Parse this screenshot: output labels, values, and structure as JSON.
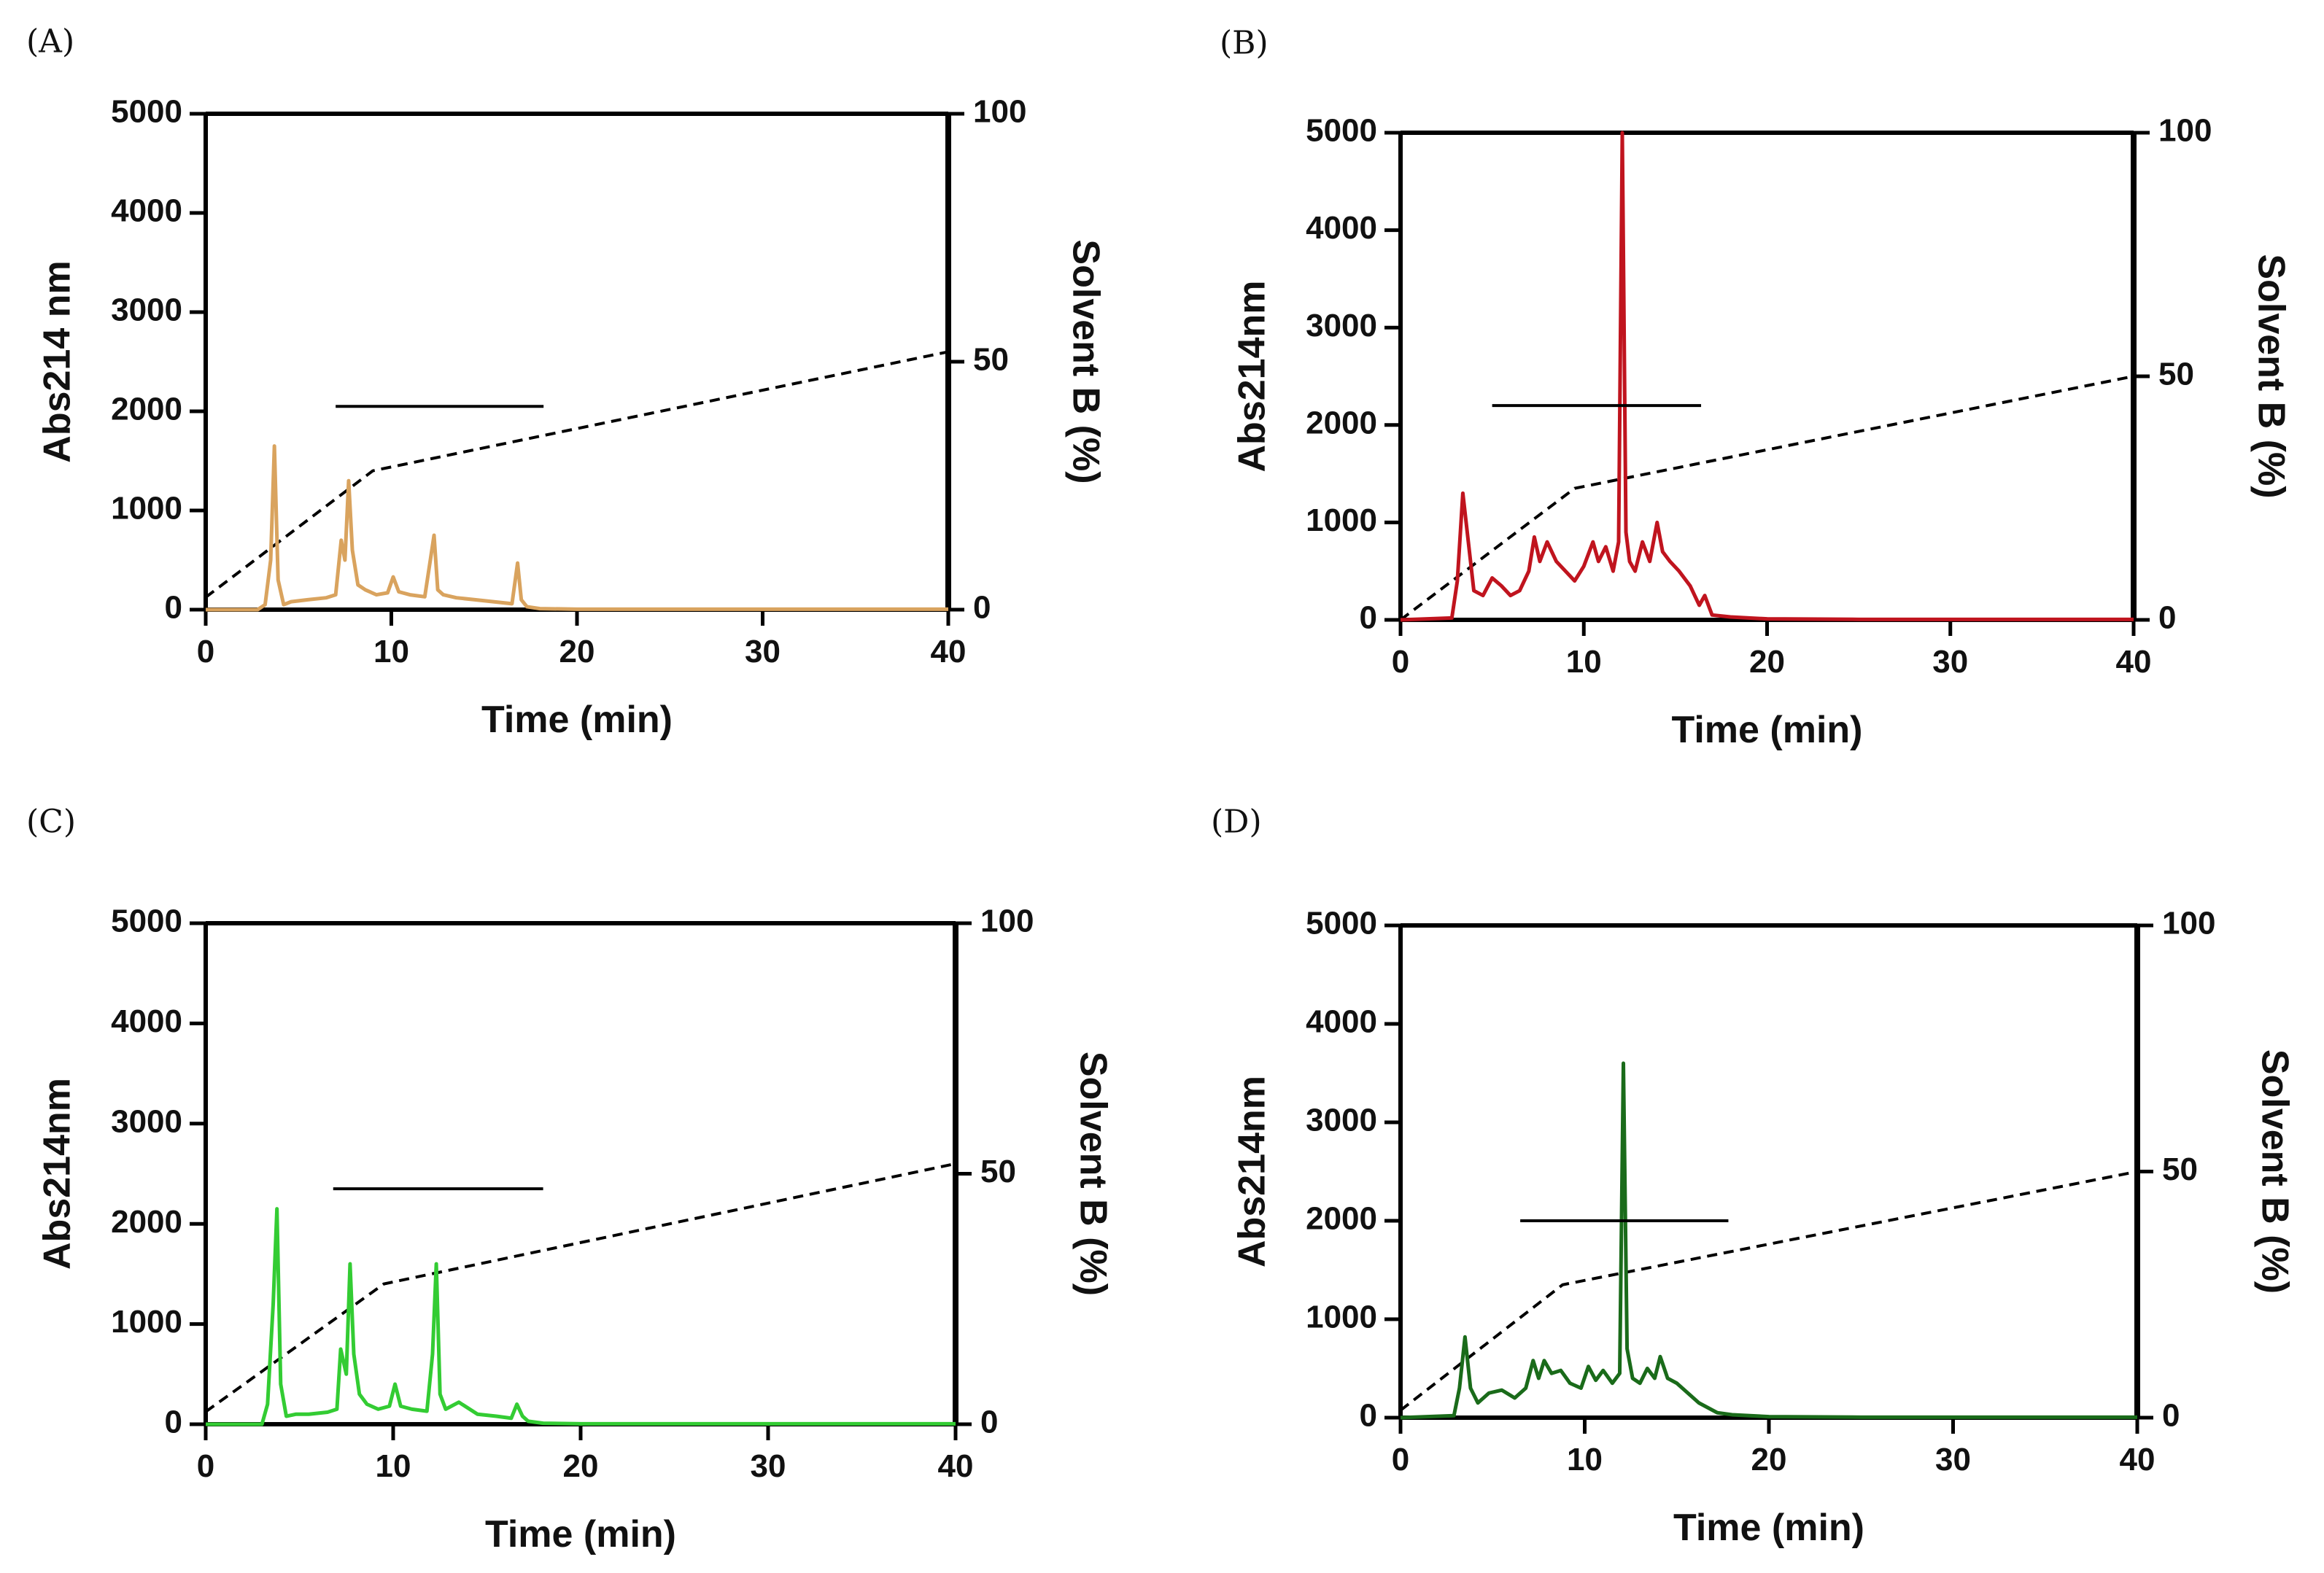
{
  "chart_data": [
    {
      "panel_label": "(A)",
      "type": "line",
      "xlabel": "Time (min)",
      "ylabel": "Abs214 nm",
      "y2label": "Solvent B (%)",
      "xlim": [
        0,
        40
      ],
      "ylim": [
        0,
        5000
      ],
      "y2lim": [
        0,
        100
      ],
      "xticks": [
        0,
        10,
        20,
        30,
        40
      ],
      "yticks": [
        0,
        1000,
        2000,
        3000,
        4000,
        5000
      ],
      "y2ticks": [
        0,
        50,
        100
      ],
      "series": [
        {
          "color": "#D9A35E",
          "x": [
            0,
            2.8,
            3.2,
            3.5,
            3.7,
            3.9,
            4.2,
            4.6,
            5.5,
            6.5,
            7.0,
            7.3,
            7.5,
            7.7,
            7.9,
            8.2,
            8.6,
            9.2,
            9.8,
            10.1,
            10.4,
            11.0,
            11.8,
            12.1,
            12.3,
            12.5,
            12.8,
            13.5,
            14.5,
            15.5,
            16.5,
            16.8,
            17.0,
            17.3,
            18.0,
            20.0,
            25.0,
            30.0,
            35.0,
            40.0
          ],
          "y": [
            0,
            0,
            50,
            500,
            1650,
            300,
            50,
            80,
            100,
            120,
            150,
            700,
            500,
            1300,
            600,
            250,
            200,
            150,
            170,
            330,
            180,
            150,
            130,
            500,
            750,
            200,
            150,
            120,
            100,
            80,
            60,
            470,
            100,
            30,
            10,
            5,
            5,
            5,
            5,
            5
          ]
        }
      ],
      "gradient": {
        "x": [
          0,
          9,
          40
        ],
        "y": [
          2.5,
          28,
          52
        ]
      },
      "fraction_bar": {
        "x": [
          7,
          18.2
        ],
        "y": 2050
      }
    },
    {
      "panel_label": "(B)",
      "type": "line",
      "xlabel": "Time (min)",
      "ylabel": "Abs214nm",
      "y2label": "Solvent B (%)",
      "xlim": [
        0,
        40
      ],
      "ylim": [
        0,
        5000
      ],
      "y2lim": [
        0,
        100
      ],
      "xticks": [
        0,
        10,
        20,
        30,
        40
      ],
      "yticks": [
        0,
        1000,
        2000,
        3000,
        4000,
        5000
      ],
      "y2ticks": [
        0,
        50,
        100
      ],
      "series": [
        {
          "color": "#C0141E",
          "x": [
            0,
            2.8,
            3.1,
            3.4,
            3.7,
            4.0,
            4.5,
            5.0,
            5.5,
            6.0,
            6.5,
            7.0,
            7.3,
            7.6,
            8.0,
            8.5,
            9.0,
            9.5,
            10.0,
            10.5,
            10.8,
            11.2,
            11.6,
            11.9,
            12.1,
            12.3,
            12.5,
            12.8,
            13.2,
            13.6,
            14.0,
            14.3,
            14.7,
            15.2,
            15.8,
            16.3,
            16.6,
            17.0,
            18.0,
            19.0,
            20.0,
            25.0,
            30.0,
            35.0,
            40.0
          ],
          "y": [
            0,
            20,
            400,
            1300,
            800,
            300,
            250,
            430,
            350,
            250,
            300,
            500,
            850,
            600,
            800,
            600,
            500,
            400,
            550,
            800,
            600,
            750,
            500,
            800,
            5000,
            900,
            600,
            500,
            800,
            600,
            1000,
            700,
            600,
            500,
            350,
            150,
            250,
            50,
            30,
            20,
            10,
            5,
            5,
            5,
            5
          ]
        }
      ],
      "gradient": {
        "x": [
          0,
          9.5,
          40
        ],
        "y": [
          0,
          27,
          50
        ]
      },
      "fraction_bar": {
        "x": [
          5,
          16.4
        ],
        "y": 2200
      }
    },
    {
      "panel_label": "(C)",
      "type": "line",
      "xlabel": "Time (min)",
      "ylabel": "Abs214nm",
      "y2label": "Solvent B (%)",
      "xlim": [
        0,
        40
      ],
      "ylim": [
        0,
        5000
      ],
      "y2lim": [
        0,
        100
      ],
      "xticks": [
        0,
        10,
        20,
        30,
        40
      ],
      "yticks": [
        0,
        1000,
        2000,
        3000,
        4000,
        5000
      ],
      "y2ticks": [
        0,
        50,
        100
      ],
      "series": [
        {
          "color": "#33CC33",
          "x": [
            0,
            3.0,
            3.3,
            3.6,
            3.8,
            4.0,
            4.3,
            4.8,
            5.5,
            6.5,
            7.0,
            7.2,
            7.5,
            7.7,
            7.9,
            8.2,
            8.6,
            9.2,
            9.8,
            10.1,
            10.4,
            11.0,
            11.8,
            12.1,
            12.3,
            12.5,
            12.8,
            13.5,
            14.5,
            15.5,
            16.3,
            16.6,
            16.9,
            17.2,
            18.0,
            20.0,
            25.0,
            30.0,
            35.0,
            40.0
          ],
          "y": [
            0,
            0,
            200,
            1200,
            2150,
            400,
            80,
            100,
            100,
            120,
            150,
            750,
            500,
            1600,
            700,
            300,
            200,
            150,
            180,
            400,
            180,
            150,
            130,
            700,
            1600,
            300,
            150,
            220,
            100,
            80,
            60,
            200,
            80,
            30,
            10,
            5,
            5,
            5,
            5,
            5
          ]
        }
      ],
      "gradient": {
        "x": [
          0,
          9.5,
          40
        ],
        "y": [
          2.5,
          28,
          52
        ]
      },
      "fraction_bar": {
        "x": [
          6.8,
          18
        ],
        "y": 2350
      }
    },
    {
      "panel_label": "(D)",
      "type": "line",
      "xlabel": "Time (min)",
      "ylabel": "Abs214nm",
      "y2label": "Solvent B (%)",
      "xlim": [
        0,
        40
      ],
      "ylim": [
        0,
        5000
      ],
      "y2lim": [
        0,
        100
      ],
      "xticks": [
        0,
        10,
        20,
        30,
        40
      ],
      "yticks": [
        0,
        1000,
        2000,
        3000,
        4000,
        5000
      ],
      "y2ticks": [
        0,
        50,
        100
      ],
      "series": [
        {
          "color": "#1A6B1A",
          "x": [
            0,
            2.9,
            3.2,
            3.5,
            3.8,
            4.2,
            4.8,
            5.5,
            6.2,
            6.8,
            7.2,
            7.5,
            7.8,
            8.2,
            8.7,
            9.2,
            9.8,
            10.2,
            10.6,
            11.0,
            11.5,
            11.9,
            12.1,
            12.3,
            12.6,
            13.0,
            13.4,
            13.8,
            14.1,
            14.5,
            15.0,
            15.6,
            16.2,
            16.7,
            17.2,
            18.0,
            20.0,
            25.0,
            30.0,
            35.0,
            40.0
          ],
          "y": [
            0,
            20,
            300,
            820,
            300,
            150,
            250,
            280,
            200,
            300,
            580,
            400,
            580,
            450,
            480,
            350,
            300,
            520,
            380,
            480,
            350,
            450,
            3600,
            700,
            400,
            350,
            500,
            400,
            620,
            400,
            350,
            250,
            150,
            100,
            50,
            30,
            10,
            5,
            5,
            5,
            5
          ]
        }
      ],
      "gradient": {
        "x": [
          0,
          8.8,
          40
        ],
        "y": [
          1.5,
          27,
          50
        ]
      },
      "fraction_bar": {
        "x": [
          6.5,
          17.8
        ],
        "y": 2000
      }
    }
  ]
}
